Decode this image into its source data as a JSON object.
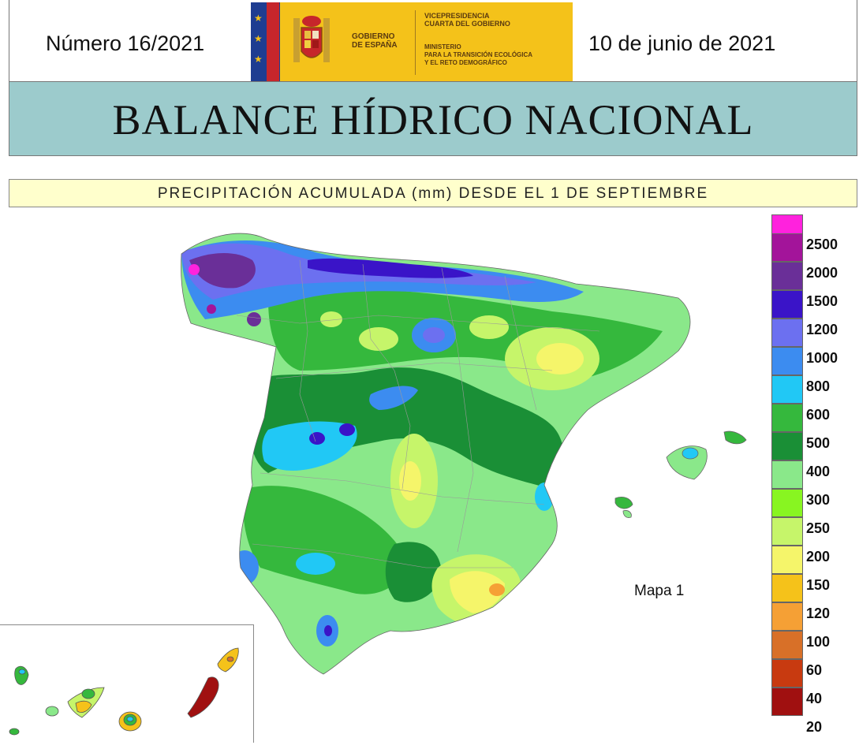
{
  "header": {
    "issue": "Número 16/2021",
    "date": "10 de junio de 2021",
    "logo": {
      "gobierno": [
        "GOBIERNO",
        "DE ESPAÑA"
      ],
      "vicepresidencia": [
        "VICEPRESIDENCIA",
        "CUARTA DEL GOBIERNO"
      ],
      "ministerio": [
        "MINISTERIO",
        "PARA LA TRANSICIÓN ECOLÓGICA",
        "Y EL RETO DEMOGRÁFICO"
      ]
    }
  },
  "title": "BALANCE HÍDRICO NACIONAL",
  "subtitle": "PRECIPITACIÓN ACUMULADA (mm) DESDE EL 1 DE SEPTIEMBRE",
  "map_label": "Mapa 1",
  "legend": [
    {
      "label": "2500",
      "color": "#ff22dd"
    },
    {
      "label": "2000",
      "color": "#a3149a"
    },
    {
      "label": "1500",
      "color": "#6a2f98"
    },
    {
      "label": "1200",
      "color": "#3a14c8"
    },
    {
      "label": "1000",
      "color": "#6c70f0"
    },
    {
      "label": "800",
      "color": "#3c8cf0"
    },
    {
      "label": "600",
      "color": "#21c8f5"
    },
    {
      "label": "500",
      "color": "#35b83d"
    },
    {
      "label": "400",
      "color": "#1a8f36"
    },
    {
      "label": "300",
      "color": "#8ae88a"
    },
    {
      "label": "250",
      "color": "#88f521"
    },
    {
      "label": "200",
      "color": "#c6f56a"
    },
    {
      "label": "150",
      "color": "#f5f56a"
    },
    {
      "label": "120",
      "color": "#f5c21a"
    },
    {
      "label": "100",
      "color": "#f5a035"
    },
    {
      "label": "60",
      "color": "#d87028"
    },
    {
      "label": "40",
      "color": "#c83a10"
    },
    {
      "label": "20",
      "color": "#a01010"
    }
  ]
}
